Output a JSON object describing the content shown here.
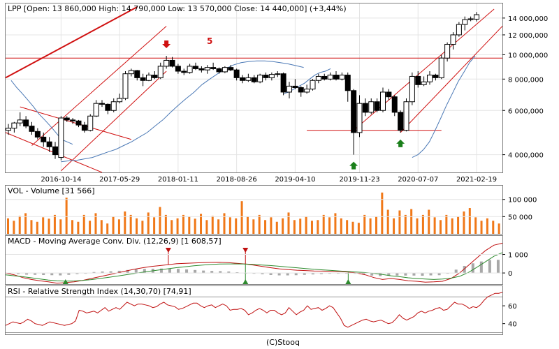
{
  "footer": "(C)Stooq",
  "chart_data": [
    {
      "type": "candlestick",
      "title": "LPP [Open: 13 860,000  High: 14 790,000  Low: 13 570,000  Close: 14 440,000] (+3,44%)",
      "y_scale": "log",
      "ylim": [
        3400000,
        16000000
      ],
      "y_ticks": [
        4000000,
        6000000,
        8000000,
        10000000,
        12000000,
        14000000
      ],
      "y_tick_labels": [
        "4 000,000",
        "6 000,000",
        "8 000,000",
        "10 000,000",
        "12 000,000",
        "14 000,000"
      ],
      "x_tick_labels": [
        "2016-10-14",
        "2017-05-29",
        "2018-01-11",
        "2018-08-26",
        "2019-04-10",
        "2019-11-23",
        "2020-07-07",
        "2021-02-19"
      ],
      "x_tick_index": [
        9,
        19,
        29,
        39,
        49,
        60,
        70,
        80
      ],
      "annotations": [
        "5"
      ],
      "candles": [
        [
          5000000,
          5300000,
          4800000,
          5100000
        ],
        [
          5100000,
          5400000,
          4900000,
          5350000
        ],
        [
          5350000,
          5900000,
          5200000,
          5500000
        ],
        [
          5500000,
          5700000,
          5100000,
          5200000
        ],
        [
          5200000,
          5400000,
          4800000,
          4950000
        ],
        [
          4950000,
          5100000,
          4600000,
          4700000
        ],
        [
          4700000,
          4900000,
          4300000,
          4500000
        ],
        [
          4500000,
          4700000,
          4100000,
          4300000
        ],
        [
          4300000,
          4500000,
          3850000,
          4000000
        ],
        [
          3900000,
          5700000,
          3800000,
          5600000
        ],
        [
          5600000,
          5700000,
          5400000,
          5500000
        ],
        [
          5500000,
          5600000,
          5300000,
          5450000
        ],
        [
          5450000,
          5500000,
          5150000,
          5250000
        ],
        [
          5250000,
          5400000,
          4900000,
          5000000
        ],
        [
          5000000,
          5800000,
          4950000,
          5700000
        ],
        [
          5700000,
          6600000,
          5650000,
          6400000
        ],
        [
          6400000,
          6600000,
          6200000,
          6350000
        ],
        [
          6350000,
          6400000,
          5800000,
          6000000
        ],
        [
          6000000,
          6700000,
          5900000,
          6500000
        ],
        [
          6500000,
          7000000,
          6400000,
          6700000
        ],
        [
          6700000,
          8600000,
          6600000,
          8400000
        ],
        [
          8400000,
          8800000,
          8200000,
          8650000
        ],
        [
          8650000,
          8700000,
          7900000,
          8100000
        ],
        [
          8100000,
          8400000,
          7500000,
          7900000
        ],
        [
          7900000,
          8500000,
          7850000,
          8300000
        ],
        [
          8300000,
          8600000,
          8000000,
          8100000
        ],
        [
          8100000,
          9300000,
          8000000,
          9000000
        ],
        [
          9000000,
          9900000,
          8800000,
          9500000
        ],
        [
          9500000,
          9800000,
          8900000,
          9000000
        ],
        [
          9000000,
          9200000,
          8400000,
          8600000
        ],
        [
          8600000,
          8800000,
          8300000,
          8500000
        ],
        [
          8500000,
          9200000,
          8400000,
          9000000
        ],
        [
          9000000,
          9300000,
          8700000,
          8800000
        ],
        [
          8800000,
          9000000,
          8500000,
          8700000
        ],
        [
          8700000,
          9100000,
          8400000,
          8900000
        ],
        [
          8900000,
          9300000,
          8700000,
          8800000
        ],
        [
          8800000,
          8900000,
          8400000,
          8550000
        ],
        [
          8550000,
          9000000,
          8450000,
          8900000
        ],
        [
          8900000,
          9100000,
          8600000,
          8700000
        ],
        [
          8700000,
          8800000,
          7900000,
          8100000
        ],
        [
          8100000,
          8300000,
          7700000,
          7900000
        ],
        [
          7900000,
          8400000,
          7800000,
          8100000
        ],
        [
          8100000,
          8300000,
          7700000,
          7800000
        ],
        [
          7800000,
          8400000,
          7700000,
          8300000
        ],
        [
          8300000,
          8500000,
          7900000,
          8100000
        ],
        [
          8100000,
          8500000,
          7900000,
          8350000
        ],
        [
          8350000,
          8600000,
          8150000,
          8400000
        ],
        [
          8400000,
          8500000,
          6900000,
          7100000
        ],
        [
          7100000,
          7800000,
          6700000,
          7500000
        ],
        [
          7500000,
          8000000,
          7300000,
          7400000
        ],
        [
          7400000,
          7500000,
          6800000,
          7100000
        ],
        [
          7100000,
          7600000,
          7000000,
          7300000
        ],
        [
          7300000,
          8000000,
          7200000,
          7900000
        ],
        [
          7900000,
          8400000,
          7700000,
          8200000
        ],
        [
          8200000,
          8400000,
          7900000,
          8000000
        ],
        [
          8000000,
          8500000,
          7900000,
          8300000
        ],
        [
          8300000,
          8600000,
          7900000,
          8000000
        ],
        [
          8000000,
          8500000,
          7900000,
          8300000
        ],
        [
          8300000,
          8500000,
          6500000,
          7200000
        ],
        [
          7200000,
          7300000,
          4000000,
          4900000
        ],
        [
          4900000,
          6900000,
          4700000,
          6400000
        ],
        [
          6400000,
          6700000,
          5700000,
          5900000
        ],
        [
          5900000,
          6700000,
          5800000,
          6500000
        ],
        [
          6500000,
          6700000,
          5900000,
          6000000
        ],
        [
          6000000,
          7400000,
          5900000,
          7100000
        ],
        [
          7100000,
          7300000,
          6600000,
          6800000
        ],
        [
          6800000,
          6900000,
          5700000,
          5900000
        ],
        [
          5900000,
          6000000,
          4900000,
          5000000
        ],
        [
          5000000,
          6700000,
          4950000,
          6500000
        ],
        [
          6500000,
          8500000,
          6300000,
          8200000
        ],
        [
          8200000,
          8600000,
          7400000,
          7600000
        ],
        [
          7600000,
          8200000,
          7500000,
          7800000
        ],
        [
          7800000,
          8600000,
          7600000,
          8300000
        ],
        [
          8300000,
          8400000,
          7900000,
          8100000
        ],
        [
          8100000,
          10000000,
          8000000,
          9700000
        ],
        [
          9700000,
          11200000,
          9400000,
          11000000
        ],
        [
          11000000,
          12300000,
          10500000,
          12000000
        ],
        [
          12000000,
          13500000,
          11800000,
          13200000
        ],
        [
          13200000,
          14200000,
          12500000,
          13800000
        ],
        [
          13800000,
          14200000,
          13600000,
          13900000
        ],
        [
          13860000,
          14790000,
          13570000,
          14440000
        ]
      ],
      "moving_average_left": [
        7900000,
        7400000,
        7000000,
        6600000,
        6200000,
        5800000,
        5500000,
        5200000,
        4900000,
        4600000,
        4500000,
        4400000
      ],
      "moving_average_main": [
        3750000,
        3780000,
        3800000,
        3850000,
        3900000,
        4000000,
        4100000,
        4200000,
        4350000,
        4500000,
        4700000,
        4900000,
        5200000,
        5500000,
        5900000,
        6300000,
        6700000,
        7100000,
        7600000,
        8000000,
        8400000,
        8800000,
        9100000,
        9300000,
        9400000,
        9450000,
        9450000,
        9400000,
        9300000,
        9200000,
        9050000,
        8900000
      ],
      "moving_average_mid": [
        7000000,
        7100000,
        7300000,
        7500000,
        7700000,
        8000000,
        8300000,
        8500000,
        8600000,
        8800000
      ],
      "moving_average_right": [
        3900000,
        4000000,
        4200000,
        4500000,
        5000000,
        5600000,
        6300000,
        7000000,
        7800000,
        8500000,
        9300000,
        9900000
      ],
      "horizontal_lines": [
        9700000,
        5000000
      ],
      "signals": [
        {
          "type": "sell",
          "index": 27
        },
        {
          "type": "buy",
          "index": 59
        },
        {
          "type": "buy",
          "index": 67
        }
      ]
    },
    {
      "type": "bar",
      "title": "VOL - Volume [31 566]",
      "y_ticks": [
        50000,
        100000
      ],
      "y_tick_labels": [
        "50 000",
        "100 000"
      ],
      "ylim": [
        0,
        140000
      ],
      "values": [
        45000,
        38000,
        52000,
        60000,
        40000,
        35000,
        48000,
        44000,
        55000,
        42000,
        105000,
        40000,
        35000,
        55000,
        38000,
        60000,
        40000,
        30000,
        50000,
        42000,
        65000,
        55000,
        45000,
        38000,
        62000,
        48000,
        78000,
        55000,
        40000,
        45000,
        55000,
        50000,
        44000,
        58000,
        40000,
        52000,
        42000,
        60000,
        48000,
        45000,
        95000,
        50000,
        42000,
        55000,
        40000,
        48000,
        35000,
        45000,
        62000,
        40000,
        44000,
        50000,
        38000,
        40000,
        55000,
        48000,
        60000,
        45000,
        40000,
        35000,
        32000,
        55000,
        45000,
        50000,
        120000,
        70000,
        45000,
        68000,
        55000,
        72000,
        45000,
        55000,
        70000,
        48000,
        40000,
        55000,
        45000,
        50000,
        65000,
        75000,
        48000,
        38000,
        45000,
        38000,
        30000
      ]
    },
    {
      "type": "line",
      "title": "MACD - Moving Average Conv. Div. (12,26,9) [1 608,57]",
      "y_ticks": [
        0,
        1000
      ],
      "y_tick_labels": [
        "0",
        "1 000"
      ],
      "ylim": [
        -600,
        2000
      ],
      "series": [
        {
          "values": [
            0,
            -100,
            -250,
            -350,
            -420,
            -480,
            -550,
            -520,
            -480,
            -400,
            -300,
            -200,
            -100,
            0,
            100,
            200,
            280,
            350,
            400,
            450,
            500,
            520,
            540,
            560,
            570,
            580,
            560,
            520,
            480,
            420,
            350,
            280,
            220,
            180,
            150,
            130,
            110,
            100,
            90,
            80,
            50,
            0,
            -100,
            -250,
            -350,
            -300,
            -350,
            -420,
            -450,
            -500,
            -480,
            -450,
            -300,
            0,
            400,
            800,
            1200,
            1500,
            1608
          ]
        },
        {
          "values": [
            -100,
            -150,
            -200,
            -260,
            -320,
            -380,
            -420,
            -440,
            -430,
            -400,
            -360,
            -300,
            -240,
            -170,
            -100,
            -30,
            40,
            110,
            170,
            230,
            290,
            340,
            390,
            430,
            460,
            480,
            490,
            490,
            480,
            460,
            430,
            400,
            360,
            320,
            280,
            240,
            200,
            170,
            140,
            110,
            80,
            50,
            20,
            -20,
            -80,
            -150,
            -200,
            -260,
            -300,
            -330,
            -350,
            -330,
            -280,
            -180,
            20,
            300,
            600,
            900,
            1100
          ]
        }
      ],
      "histogram": [
        0,
        -60,
        -90,
        -100,
        -110,
        -120,
        -130,
        -100,
        -60,
        0,
        50,
        80,
        90,
        120,
        160,
        200,
        220,
        230,
        240,
        240,
        220,
        190,
        160,
        130,
        110,
        100,
        80,
        40,
        0,
        -40,
        -70,
        -110,
        -130,
        -130,
        -120,
        -100,
        -80,
        -60,
        -40,
        -20,
        -20,
        -40,
        -80,
        -140,
        -170,
        -150,
        -140,
        -140,
        -140,
        -150,
        -130,
        -120,
        -20,
        180,
        380,
        520,
        620,
        700,
        710
      ],
      "signals": [
        {
          "type": "sell",
          "index": 19
        },
        {
          "type": "buy",
          "index": 7
        },
        {
          "type": "sell",
          "index": 28
        },
        {
          "type": "buy",
          "index": 28
        },
        {
          "type": "buy",
          "index": 40
        }
      ]
    },
    {
      "type": "line",
      "title": "RSI - Relative Strength Index (14,30,70) [74,91]",
      "y_ticks": [
        40,
        60
      ],
      "y_tick_labels": [
        "40",
        "60"
      ],
      "ylim": [
        28,
        82
      ],
      "reference_lines": [
        30,
        70
      ],
      "series": [
        {
          "values": [
            38,
            40,
            42,
            41,
            40,
            42,
            45,
            43,
            40,
            39,
            38,
            40,
            42,
            41,
            40,
            39,
            38,
            39,
            40,
            43,
            55,
            54,
            52,
            53,
            54,
            52,
            55,
            58,
            54,
            56,
            58,
            56,
            60,
            64,
            62,
            60,
            62,
            62,
            61,
            60,
            58,
            59,
            62,
            64,
            61,
            60,
            59,
            56,
            57,
            59,
            61,
            63,
            63,
            60,
            58,
            60,
            61,
            58,
            60,
            62,
            60,
            55,
            56,
            56,
            57,
            55,
            50,
            52,
            55,
            57,
            55,
            52,
            55,
            55,
            52,
            50,
            52,
            58,
            54,
            50,
            53,
            55,
            60,
            56,
            57,
            58,
            55,
            57,
            60,
            58,
            52,
            46,
            38,
            36,
            38,
            40,
            42,
            44,
            45,
            43,
            42,
            43,
            44,
            42,
            40,
            41,
            45,
            50,
            46,
            44,
            46,
            48,
            52,
            54,
            52,
            54,
            55,
            57,
            58,
            55,
            56,
            60,
            64,
            62,
            62,
            60,
            57,
            59,
            58,
            61,
            66,
            70,
            72,
            74,
            74,
            75
          ]
        }
      ]
    }
  ]
}
